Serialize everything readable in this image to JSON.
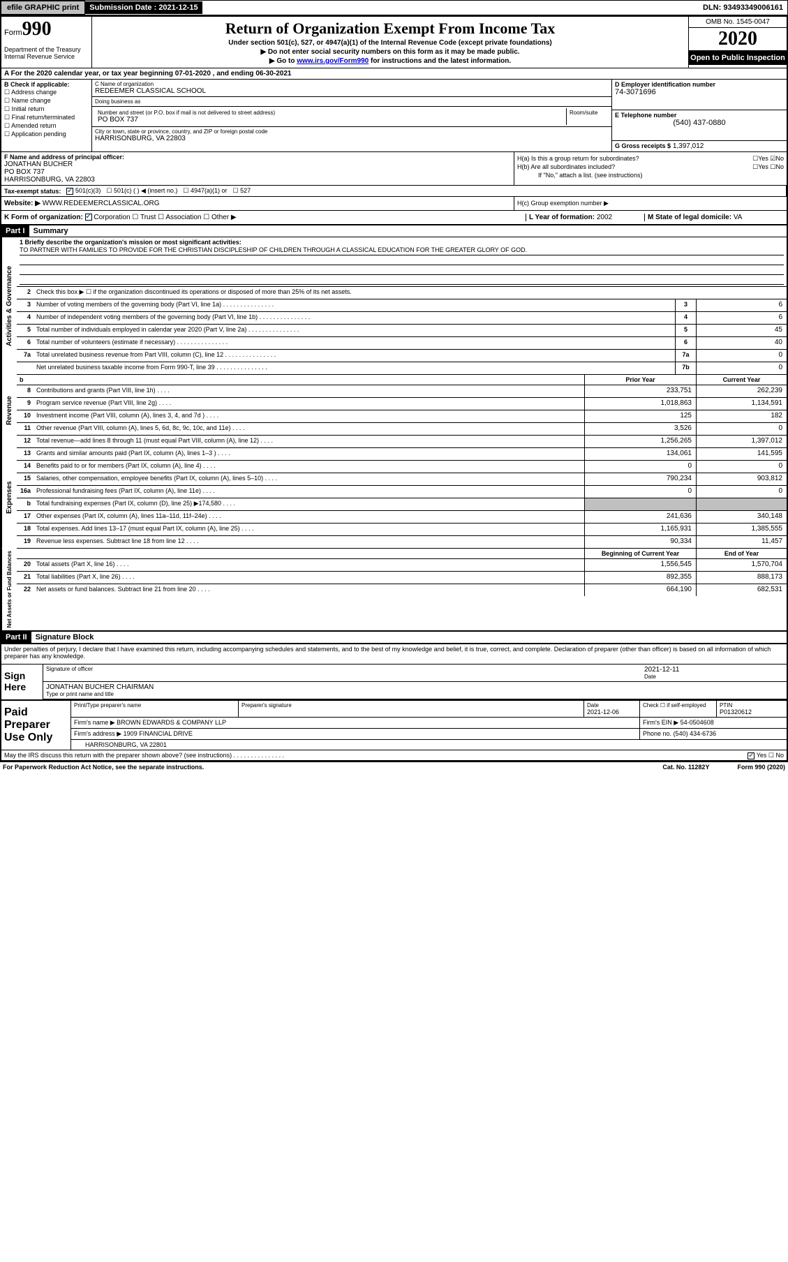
{
  "topbar": {
    "efile_btn": "efile GRAPHIC print",
    "sub_label": "Submission Date : 2021-12-15",
    "dln": "DLN: 93493349006161"
  },
  "header": {
    "form_label": "Form",
    "form_num": "990",
    "dept": "Department of the Treasury\nInternal Revenue Service",
    "title": "Return of Organization Exempt From Income Tax",
    "subtitle": "Under section 501(c), 527, or 4947(a)(1) of the Internal Revenue Code (except private foundations)",
    "note1": "▶ Do not enter social security numbers on this form as it may be made public.",
    "note2_pre": "▶ Go to ",
    "note2_link": "www.irs.gov/Form990",
    "note2_post": " for instructions and the latest information.",
    "omb": "OMB No. 1545-0047",
    "year": "2020",
    "open": "Open to Public Inspection"
  },
  "row_a": "A   For the 2020 calendar year, or tax year beginning 07-01-2020    , and ending 06-30-2021",
  "section_b": {
    "label": "B Check if applicable:",
    "opts": [
      "Address change",
      "Name change",
      "Initial return",
      "Final return/terminated",
      "Amended return",
      "Application pending"
    ]
  },
  "section_c": {
    "name_label": "C Name of organization",
    "name": "REDEEMER CLASSICAL SCHOOL",
    "dba_label": "Doing business as",
    "dba": "",
    "addr_label": "Number and street (or P.O. box if mail is not delivered to street address)",
    "suite_label": "Room/suite",
    "addr": "PO BOX 737",
    "city_label": "City or town, state or province, country, and ZIP or foreign postal code",
    "city": "HARRISONBURG, VA  22803"
  },
  "section_d": {
    "label": "D Employer identification number",
    "val": "74-3071696"
  },
  "section_e": {
    "label": "E Telephone number",
    "val": "(540) 437-0880"
  },
  "section_g": {
    "label": "G Gross receipts $",
    "val": "1,397,012"
  },
  "section_f": {
    "label": "F  Name and address of principal officer:",
    "name": "JONATHAN BUCHER",
    "addr1": "PO BOX 737",
    "addr2": "HARRISONBURG, VA  22803"
  },
  "section_h": {
    "ha": "H(a)  Is this a group return for subordinates?",
    "hb": "H(b)  Are all subordinates included?",
    "hb_note": "If \"No,\" attach a list. (see instructions)",
    "hc": "H(c)  Group exemption number ▶"
  },
  "tax_status": {
    "label": "Tax-exempt status:",
    "opt1": "501(c)(3)",
    "opt2": "501(c) (   ) ◀ (insert no.)",
    "opt3": "4947(a)(1) or",
    "opt4": "527"
  },
  "website": {
    "label": "Website: ▶",
    "val": "WWW.REDEEMERCLASSICAL.ORG"
  },
  "row_k": {
    "label": "K Form of organization:",
    "opts": [
      "Corporation",
      "Trust",
      "Association",
      "Other ▶"
    ],
    "l_label": "L Year of formation:",
    "l_val": "2002",
    "m_label": "M State of legal domicile:",
    "m_val": "VA"
  },
  "part1": {
    "header": "Part I",
    "title": "Summary",
    "mission_label": "1  Briefly describe the organization's mission or most significant activities:",
    "mission": "TO PARTNER WITH FAMILIES TO PROVIDE FOR THE CHRISTIAN DISCIPLESHIP OF CHILDREN THROUGH A CLASSICAL EDUCATION FOR THE GREATER GLORY OF GOD.",
    "line2": "Check this box ▶ ☐  if the organization discontinued its operations or disposed of more than 25% of its net assets.",
    "sides": {
      "ag": "Activities & Governance",
      "rev": "Revenue",
      "exp": "Expenses",
      "net": "Net Assets or Fund Balances"
    },
    "lines_single": [
      {
        "n": "3",
        "t": "Number of voting members of the governing body (Part VI, line 1a)",
        "box": "3",
        "v": "6"
      },
      {
        "n": "4",
        "t": "Number of independent voting members of the governing body (Part VI, line 1b)",
        "box": "4",
        "v": "6"
      },
      {
        "n": "5",
        "t": "Total number of individuals employed in calendar year 2020 (Part V, line 2a)",
        "box": "5",
        "v": "45"
      },
      {
        "n": "6",
        "t": "Total number of volunteers (estimate if necessary)",
        "box": "6",
        "v": "40"
      },
      {
        "n": "7a",
        "t": "Total unrelated business revenue from Part VIII, column (C), line 12",
        "box": "7a",
        "v": "0"
      },
      {
        "n": "",
        "t": "Net unrelated business taxable income from Form 990-T, line 39",
        "box": "7b",
        "v": "0"
      }
    ],
    "col_headers": {
      "prior": "Prior Year",
      "current": "Current Year"
    },
    "revenue": [
      {
        "n": "8",
        "t": "Contributions and grants (Part VIII, line 1h)",
        "p": "233,751",
        "c": "262,239"
      },
      {
        "n": "9",
        "t": "Program service revenue (Part VIII, line 2g)",
        "p": "1,018,863",
        "c": "1,134,591"
      },
      {
        "n": "10",
        "t": "Investment income (Part VIII, column (A), lines 3, 4, and 7d )",
        "p": "125",
        "c": "182"
      },
      {
        "n": "11",
        "t": "Other revenue (Part VIII, column (A), lines 5, 6d, 8c, 9c, 10c, and 11e)",
        "p": "3,526",
        "c": "0"
      },
      {
        "n": "12",
        "t": "Total revenue—add lines 8 through 11 (must equal Part VIII, column (A), line 12)",
        "p": "1,256,265",
        "c": "1,397,012"
      }
    ],
    "expenses": [
      {
        "n": "13",
        "t": "Grants and similar amounts paid (Part IX, column (A), lines 1–3 )",
        "p": "134,061",
        "c": "141,595"
      },
      {
        "n": "14",
        "t": "Benefits paid to or for members (Part IX, column (A), line 4)",
        "p": "0",
        "c": "0"
      },
      {
        "n": "15",
        "t": "Salaries, other compensation, employee benefits (Part IX, column (A), lines 5–10)",
        "p": "790,234",
        "c": "903,812"
      },
      {
        "n": "16a",
        "t": "Professional fundraising fees (Part IX, column (A), line 11e)",
        "p": "0",
        "c": "0"
      },
      {
        "n": "b",
        "t": "Total fundraising expenses (Part IX, column (D), line 25) ▶174,580",
        "p": "",
        "c": "",
        "shaded": true
      },
      {
        "n": "17",
        "t": "Other expenses (Part IX, column (A), lines 11a–11d, 11f–24e)",
        "p": "241,636",
        "c": "340,148"
      },
      {
        "n": "18",
        "t": "Total expenses. Add lines 13–17 (must equal Part IX, column (A), line 25)",
        "p": "1,165,931",
        "c": "1,385,555"
      },
      {
        "n": "19",
        "t": "Revenue less expenses. Subtract line 18 from line 12",
        "p": "90,334",
        "c": "11,457"
      }
    ],
    "net_headers": {
      "begin": "Beginning of Current Year",
      "end": "End of Year"
    },
    "net": [
      {
        "n": "20",
        "t": "Total assets (Part X, line 16)",
        "p": "1,556,545",
        "c": "1,570,704"
      },
      {
        "n": "21",
        "t": "Total liabilities (Part X, line 26)",
        "p": "892,355",
        "c": "888,173"
      },
      {
        "n": "22",
        "t": "Net assets or fund balances. Subtract line 21 from line 20",
        "p": "664,190",
        "c": "682,531"
      }
    ]
  },
  "part2": {
    "header": "Part II",
    "title": "Signature Block",
    "declaration": "Under penalties of perjury, I declare that I have examined this return, including accompanying schedules and statements, and to the best of my knowledge and belief, it is true, correct, and complete. Declaration of preparer (other than officer) is based on all information of which preparer has any knowledge.",
    "sign_here": "Sign Here",
    "sig_officer": "Signature of officer",
    "sig_date": "2021-12-11",
    "date_label": "Date",
    "officer_name": "JONATHAN BUCHER  CHAIRMAN",
    "type_label": "Type or print name and title",
    "paid_label": "Paid Preparer Use Only",
    "prep_name_label": "Print/Type preparer's name",
    "prep_sig_label": "Preparer's signature",
    "prep_date_label": "Date",
    "prep_date": "2021-12-06",
    "self_emp": "Check ☐ if self-employed",
    "ptin_label": "PTIN",
    "ptin": "P01320612",
    "firm_name_label": "Firm's name      ▶",
    "firm_name": "BROWN EDWARDS & COMPANY LLP",
    "firm_ein_label": "Firm's EIN ▶",
    "firm_ein": "54-0504608",
    "firm_addr_label": "Firm's address ▶",
    "firm_addr1": "1909 FINANCIAL DRIVE",
    "firm_addr2": "HARRISONBURG, VA  22801",
    "phone_label": "Phone no.",
    "phone": "(540) 434-6736",
    "discuss": "May the IRS discuss this return with the preparer shown above? (see instructions)"
  },
  "footer": {
    "left": "For Paperwork Reduction Act Notice, see the separate instructions.",
    "mid": "Cat. No. 11282Y",
    "right": "Form 990 (2020)"
  }
}
